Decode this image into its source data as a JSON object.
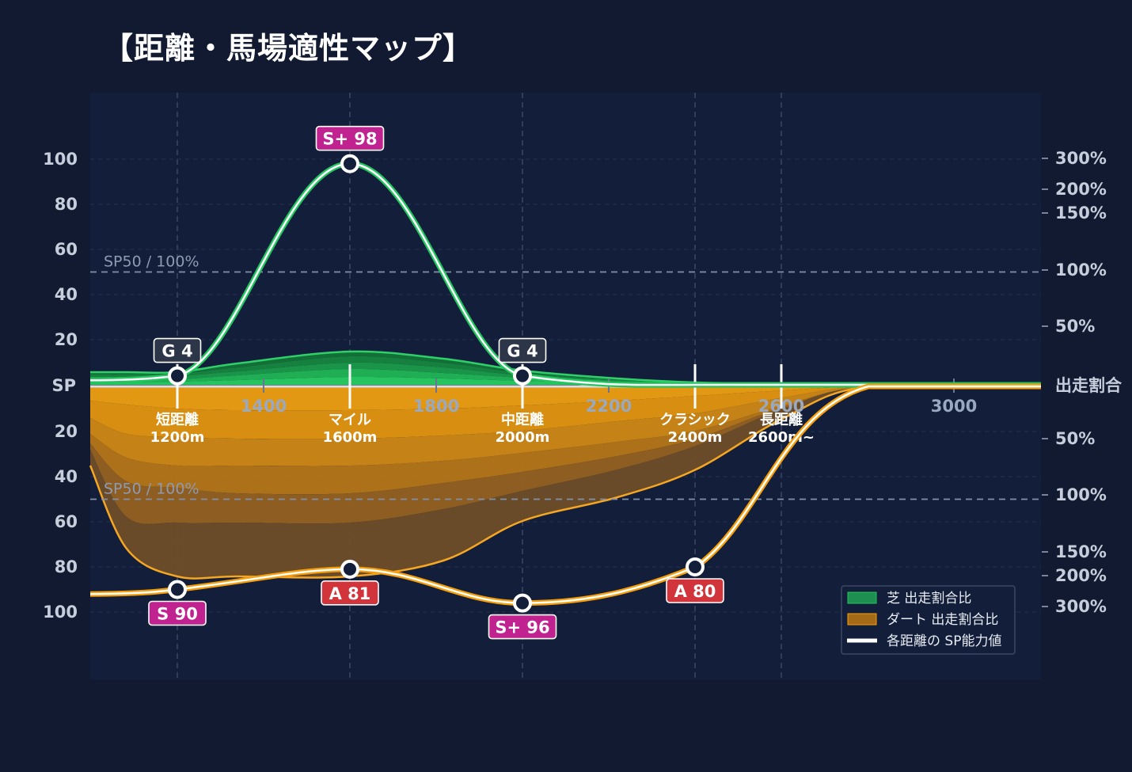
{
  "title": "【距離・馬場適性マップ】",
  "chart_data": {
    "type": "area",
    "x_ticks": [
      "1400",
      "1800",
      "2200",
      "2600",
      "3000"
    ],
    "categories": [
      {
        "label": "短距離",
        "sub": "1200m",
        "x": 1200
      },
      {
        "label": "マイル",
        "sub": "1600m",
        "x": 1600
      },
      {
        "label": "中距離",
        "sub": "2000m",
        "x": 2000
      },
      {
        "label": "クラシック",
        "sub": "2400m",
        "x": 2400
      },
      {
        "label": "長距離",
        "sub": "2600m~",
        "x": 2600
      }
    ],
    "left_axis": {
      "center_label": "SP",
      "upper_ticks": [
        "100",
        "80",
        "60",
        "40",
        "20"
      ],
      "lower_ticks": [
        "20",
        "40",
        "60",
        "80",
        "100"
      ]
    },
    "right_axis": {
      "center_label": "出走割合",
      "upper_ticks": [
        "300%",
        "200%",
        "150%",
        "100%",
        "50%"
      ],
      "lower_ticks": [
        "50%",
        "100%",
        "150%",
        "200%",
        "300%"
      ]
    },
    "reference_label": "SP50 / 100%",
    "turf_sp": {
      "x": [
        1200,
        1600,
        2000
      ],
      "values": [
        4,
        98,
        4
      ],
      "labels": [
        {
          "x": 1200,
          "value": 4,
          "text": "G 4",
          "color": "#2d3648"
        },
        {
          "x": 1600,
          "value": 98,
          "text": "S+ 98",
          "color": "#c0228f"
        },
        {
          "x": 2000,
          "value": 4,
          "text": "G 4",
          "color": "#2d3648"
        }
      ]
    },
    "dirt_sp": {
      "x": [
        1200,
        1600,
        2000,
        2400
      ],
      "values": [
        90,
        81,
        96,
        80
      ],
      "labels": [
        {
          "x": 1200,
          "value": 90,
          "text": "S 90",
          "color": "#c0228f"
        },
        {
          "x": 1600,
          "value": 81,
          "text": "A 81",
          "color": "#d2343c"
        },
        {
          "x": 2000,
          "value": 96,
          "text": "S+ 96",
          "color": "#c0228f"
        },
        {
          "x": 2400,
          "value": 80,
          "text": "A 80",
          "color": "#d2343c"
        }
      ]
    },
    "series": [
      {
        "name": "芝 出走割合比",
        "color": "#1e8f4f"
      },
      {
        "name": "ダート 出走割合比",
        "color": "#a56a16"
      },
      {
        "name": "各距離の SP能力値",
        "color": "#ffffff"
      }
    ],
    "colors": {
      "turf": "#22c55e",
      "dirt": "#f59e0b",
      "plot_bg": "#131f3a",
      "page_bg": "#111a30"
    },
    "legend_position": "bottom-right"
  }
}
